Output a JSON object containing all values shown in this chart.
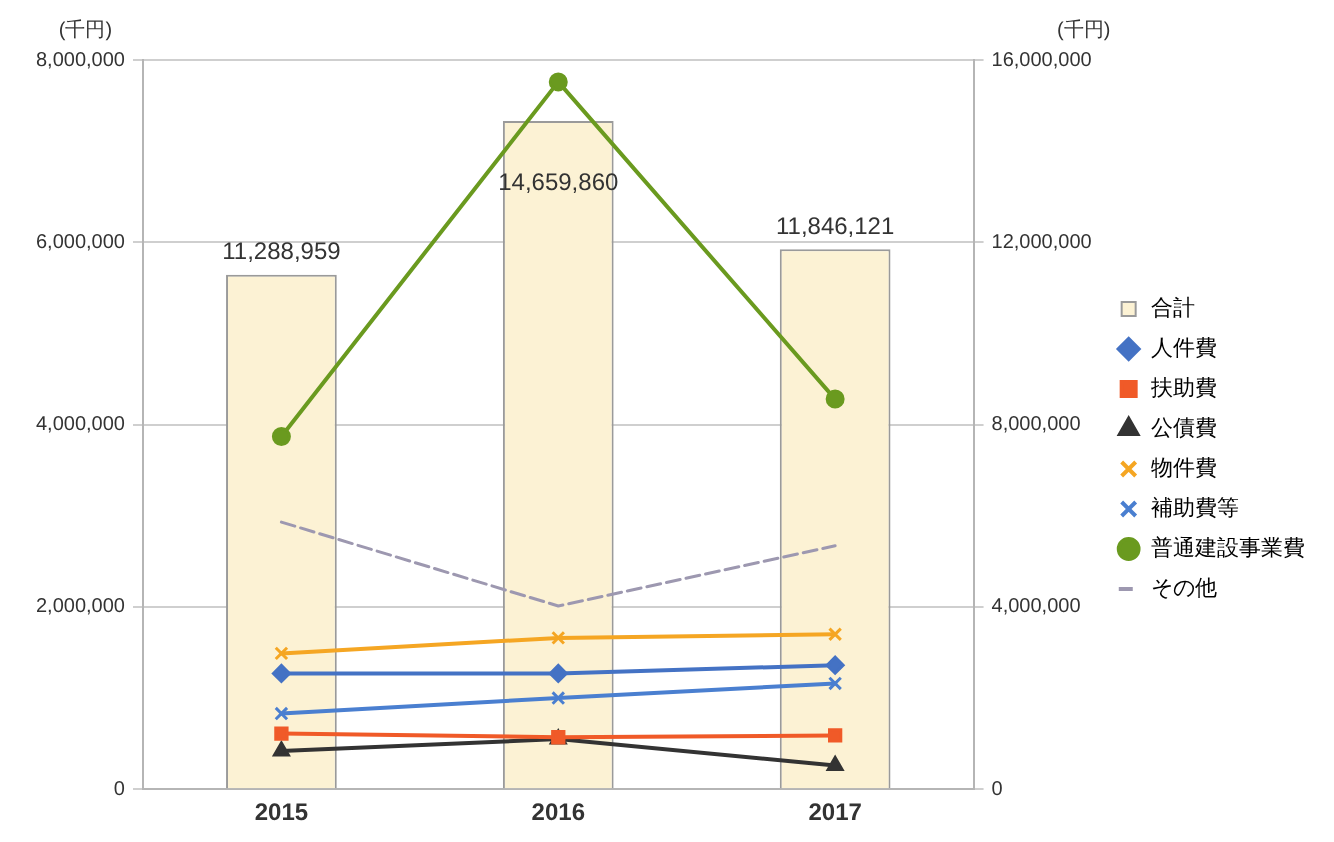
{
  "chart_data": {
    "type": "line",
    "ylabel": "(千円)",
    "y2label": "(千円)",
    "categories": [
      "2015",
      "2016",
      "2017"
    ],
    "series": [
      {
        "name": "合計",
        "type": "bar",
        "axis": "y2",
        "color": "#fcf2d4",
        "values": [
          11288959,
          14659860,
          11846121
        ],
        "value_labels": [
          "11,288,959",
          "14,659,860",
          "11,846,121"
        ]
      },
      {
        "name": "人件費",
        "color": "#4472c4",
        "marker": "diamond",
        "values": [
          1270000,
          1270000,
          1360000
        ]
      },
      {
        "name": "扶助費",
        "color": "#f05a28",
        "marker": "square",
        "values": [
          610000,
          570000,
          590000
        ]
      },
      {
        "name": "公債費",
        "color": "#333333",
        "marker": "triangle",
        "values": [
          420000,
          550000,
          260000
        ]
      },
      {
        "name": "物件費",
        "color": "#f5a623",
        "marker": "cross",
        "values": [
          1490000,
          1660000,
          1700000
        ]
      },
      {
        "name": "補助費等",
        "color": "#4a7fd0",
        "marker": "cross",
        "values": [
          830000,
          1000000,
          1160000
        ]
      },
      {
        "name": "普通建設事業費",
        "color": "#6a9a1f",
        "marker": "circle",
        "values": [
          3870000,
          7760000,
          4280000
        ]
      },
      {
        "name": "その他",
        "color": "#9d98b0",
        "marker": "none",
        "line_style": "dashed",
        "values": [
          2930000,
          2010000,
          2670000
        ]
      }
    ],
    "ylim": [
      0,
      8000000
    ],
    "yticks": [
      0,
      {
        "value": 2000000,
        "label": "2,000,000"
      },
      {
        "value": 4000000,
        "label": "4,000,000"
      },
      {
        "value": 6000000,
        "label": "6,000,000"
      },
      {
        "value": 8000000,
        "label": "8,000,000"
      }
    ],
    "y2lim": [
      0,
      16000000
    ],
    "y2ticks": [
      0,
      {
        "value": 4000000,
        "label": "4,000,000"
      },
      {
        "value": 8000000,
        "label": "8,000,000"
      },
      {
        "value": 12000000,
        "label": "12,000,000"
      },
      {
        "value": 16000000,
        "label": "16,000,000"
      }
    ],
    "grid": "y",
    "legend": "right"
  }
}
